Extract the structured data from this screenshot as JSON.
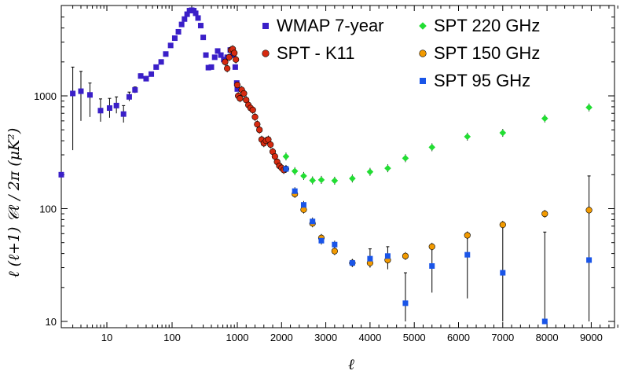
{
  "chart_data": {
    "type": "scatter",
    "title": "",
    "xlabel": "ℓ",
    "ylabel": "ℓ (ℓ+1) 𝒞ℓ  /  2π     (μK²)",
    "y_scale": "log",
    "x_scale": "hybrid: logarithmic from 2 to 1000, linear from 1000 to 9800",
    "xlim": [
      2,
      9800
    ],
    "ylim": [
      10,
      6000
    ],
    "grid": false,
    "legend_placement": "top-right (two columns)",
    "x_tick_labels": [
      "10",
      "100",
      "1000",
      "2000",
      "3000",
      "4000",
      "5000",
      "6000",
      "7000",
      "8000",
      "9000"
    ],
    "x_tick_values": [
      10,
      100,
      1000,
      2000,
      3000,
      4000,
      5000,
      6000,
      7000,
      8000,
      9000
    ],
    "y_tick_labels": [
      "10",
      "100",
      "1000"
    ],
    "y_tick_values": [
      10,
      100,
      1000
    ],
    "series": [
      {
        "name": "WMAP 7-year",
        "marker": "square",
        "color": "#3a1fc8",
        "points": [
          {
            "x": 2,
            "y": 200,
            "err": [
              200,
              200
            ]
          },
          {
            "x": 3,
            "y": 1050,
            "err": [
              330,
              1800
            ]
          },
          {
            "x": 4,
            "y": 1100,
            "err": [
              600,
              1650
            ]
          },
          {
            "x": 5.5,
            "y": 1020,
            "err": [
              650,
              1300
            ]
          },
          {
            "x": 8,
            "y": 740,
            "err": [
              590,
              940
            ]
          },
          {
            "x": 11,
            "y": 780,
            "err": [
              640,
              950
            ]
          },
          {
            "x": 14,
            "y": 820,
            "err": [
              700,
              980
            ]
          },
          {
            "x": 18,
            "y": 690,
            "err": [
              580,
              820
            ]
          },
          {
            "x": 22,
            "y": 980,
            "err": [
              900,
              1080
            ]
          },
          {
            "x": 27,
            "y": 1130,
            "err": [
              1060,
              1200
            ]
          },
          {
            "x": 33,
            "y": 1500,
            "err": [
              1430,
              1570
            ]
          },
          {
            "x": 40,
            "y": 1420,
            "err": [
              1360,
              1490
            ]
          },
          {
            "x": 48,
            "y": 1560,
            "err": [
              1500,
              1620
            ]
          },
          {
            "x": 57,
            "y": 1800
          },
          {
            "x": 68,
            "y": 2000
          },
          {
            "x": 80,
            "y": 2350
          },
          {
            "x": 95,
            "y": 2800
          },
          {
            "x": 110,
            "y": 3250
          },
          {
            "x": 125,
            "y": 3700
          },
          {
            "x": 140,
            "y": 4300
          },
          {
            "x": 155,
            "y": 4800
          },
          {
            "x": 170,
            "y": 5300
          },
          {
            "x": 185,
            "y": 5700
          },
          {
            "x": 200,
            "y": 5750
          },
          {
            "x": 215,
            "y": 5700
          },
          {
            "x": 230,
            "y": 5400
          },
          {
            "x": 250,
            "y": 4900
          },
          {
            "x": 275,
            "y": 4200
          },
          {
            "x": 300,
            "y": 3300
          },
          {
            "x": 330,
            "y": 2300
          },
          {
            "x": 360,
            "y": 1780
          },
          {
            "x": 400,
            "y": 1800
          },
          {
            "x": 450,
            "y": 2200
          },
          {
            "x": 500,
            "y": 2500
          },
          {
            "x": 560,
            "y": 2300
          },
          {
            "x": 620,
            "y": 2100
          },
          {
            "x": 700,
            "y": 2200
          },
          {
            "x": 780,
            "y": 2550
          },
          {
            "x": 860,
            "y": 2300
          },
          {
            "x": 930,
            "y": 1800
          },
          {
            "x": 980,
            "y": 1300
          },
          {
            "x": 1000,
            "y": 1150
          }
        ]
      },
      {
        "name": "SPT - K11",
        "marker": "circle",
        "color": "#d62a10",
        "points": [
          {
            "x": 650,
            "y": 2000
          },
          {
            "x": 700,
            "y": 1750
          },
          {
            "x": 750,
            "y": 2200
          },
          {
            "x": 800,
            "y": 2550
          },
          {
            "x": 850,
            "y": 2600
          },
          {
            "x": 900,
            "y": 2400
          },
          {
            "x": 950,
            "y": 2100
          },
          {
            "x": 1000,
            "y": 1250
          },
          {
            "x": 1020,
            "y": 1000
          },
          {
            "x": 1060,
            "y": 950
          },
          {
            "x": 1100,
            "y": 1130
          },
          {
            "x": 1150,
            "y": 1050
          },
          {
            "x": 1200,
            "y": 920
          },
          {
            "x": 1250,
            "y": 830
          },
          {
            "x": 1300,
            "y": 780
          },
          {
            "x": 1350,
            "y": 750
          },
          {
            "x": 1400,
            "y": 650
          },
          {
            "x": 1450,
            "y": 560
          },
          {
            "x": 1500,
            "y": 500
          },
          {
            "x": 1550,
            "y": 410
          },
          {
            "x": 1600,
            "y": 380
          },
          {
            "x": 1650,
            "y": 400
          },
          {
            "x": 1700,
            "y": 410
          },
          {
            "x": 1750,
            "y": 370
          },
          {
            "x": 1800,
            "y": 320
          },
          {
            "x": 1850,
            "y": 290
          },
          {
            "x": 1900,
            "y": 260
          },
          {
            "x": 1950,
            "y": 240
          },
          {
            "x": 2000,
            "y": 230
          },
          {
            "x": 2050,
            "y": 220
          }
        ]
      },
      {
        "name": "SPT 220 GHz",
        "marker": "diamond",
        "color": "#22dd33",
        "points": [
          {
            "x": 2100,
            "y": 290
          },
          {
            "x": 2300,
            "y": 215
          },
          {
            "x": 2500,
            "y": 195
          },
          {
            "x": 2700,
            "y": 178
          },
          {
            "x": 2900,
            "y": 180
          },
          {
            "x": 3200,
            "y": 177
          },
          {
            "x": 3600,
            "y": 185
          },
          {
            "x": 4000,
            "y": 212
          },
          {
            "x": 4400,
            "y": 228
          },
          {
            "x": 4800,
            "y": 280
          },
          {
            "x": 5400,
            "y": 350
          },
          {
            "x": 6200,
            "y": 435
          },
          {
            "x": 7000,
            "y": 470
          },
          {
            "x": 7950,
            "y": 630
          },
          {
            "x": 8950,
            "y": 790
          }
        ]
      },
      {
        "name": "SPT 150 GHz",
        "marker": "circle",
        "color": "#f29a00",
        "points": [
          {
            "x": 2100,
            "y": 225
          },
          {
            "x": 2300,
            "y": 135
          },
          {
            "x": 2500,
            "y": 98
          },
          {
            "x": 2700,
            "y": 74
          },
          {
            "x": 2900,
            "y": 55
          },
          {
            "x": 3200,
            "y": 42
          },
          {
            "x": 3600,
            "y": 33
          },
          {
            "x": 4000,
            "y": 33
          },
          {
            "x": 4400,
            "y": 35
          },
          {
            "x": 4800,
            "y": 38
          },
          {
            "x": 5400,
            "y": 46
          },
          {
            "x": 6200,
            "y": 58
          },
          {
            "x": 7000,
            "y": 72
          },
          {
            "x": 7950,
            "y": 90
          },
          {
            "x": 8950,
            "y": 97
          }
        ]
      },
      {
        "name": "SPT 95 GHz",
        "marker": "square",
        "color": "#1a55e8",
        "points": [
          {
            "x": 2100,
            "y": 225
          },
          {
            "x": 2300,
            "y": 143
          },
          {
            "x": 2500,
            "y": 108
          },
          {
            "x": 2700,
            "y": 77
          },
          {
            "x": 2900,
            "y": 52
          },
          {
            "x": 3200,
            "y": 48
          },
          {
            "x": 3600,
            "y": 33
          },
          {
            "x": 4000,
            "y": 36,
            "err": [
              30,
              44
            ]
          },
          {
            "x": 4400,
            "y": 38,
            "err": [
              29,
              46
            ]
          },
          {
            "x": 4800,
            "y": 14.5,
            "err": [
              10,
              27
            ]
          },
          {
            "x": 5400,
            "y": 31,
            "err": [
              18,
              45
            ]
          },
          {
            "x": 6200,
            "y": 39,
            "err": [
              16,
              60
            ]
          },
          {
            "x": 7000,
            "y": 27,
            "err": [
              10,
              69
            ]
          },
          {
            "x": 7950,
            "y": 10,
            "err": [
              10,
              62
            ]
          },
          {
            "x": 8950,
            "y": 35,
            "err": [
              10,
              195
            ]
          }
        ]
      }
    ]
  }
}
